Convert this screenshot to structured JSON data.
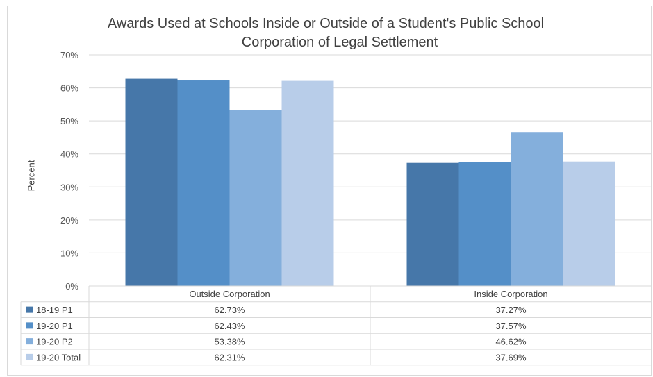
{
  "chart_data": {
    "type": "bar",
    "title": "Awards Used at Schools Inside or Outside of a Student's Public School Corporation of Legal Settlement",
    "title_lines": [
      "Awards Used at Schools Inside or Outside of a Student's Public School",
      "Corporation of Legal Settlement"
    ],
    "xlabel": "",
    "ylabel": "Percent",
    "ylim": [
      0,
      70
    ],
    "yticks": [
      "0%",
      "10%",
      "20%",
      "30%",
      "40%",
      "50%",
      "60%",
      "70%"
    ],
    "grid": true,
    "legend": "data-table",
    "categories": [
      "Outside Corporation",
      "Inside Corporation"
    ],
    "series": [
      {
        "name": "18-19 P1",
        "values": [
          62.73,
          37.27
        ],
        "labels": [
          "62.73%",
          "37.27%"
        ],
        "color": "#4677a9"
      },
      {
        "name": "19-20 P1",
        "values": [
          62.43,
          37.57
        ],
        "labels": [
          "62.43%",
          "37.57%"
        ],
        "color": "#548fc8"
      },
      {
        "name": "19-20 P2",
        "values": [
          53.38,
          46.62
        ],
        "labels": [
          "53.38%",
          "46.62%"
        ],
        "color": "#84afdc"
      },
      {
        "name": "19-20 Total",
        "values": [
          62.31,
          37.69
        ],
        "labels": [
          "62.31%",
          "37.69%"
        ],
        "color": "#b8cde9"
      }
    ]
  }
}
